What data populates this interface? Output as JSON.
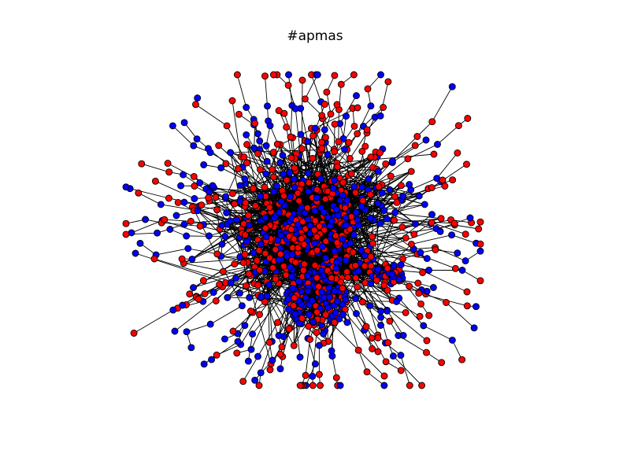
{
  "title": "#apmas",
  "colors": {
    "background": "#ffffff",
    "node_red": "#ff0000",
    "node_blue": "#0000ff",
    "edge": "#000000",
    "node_outline": "#000000"
  }
}
